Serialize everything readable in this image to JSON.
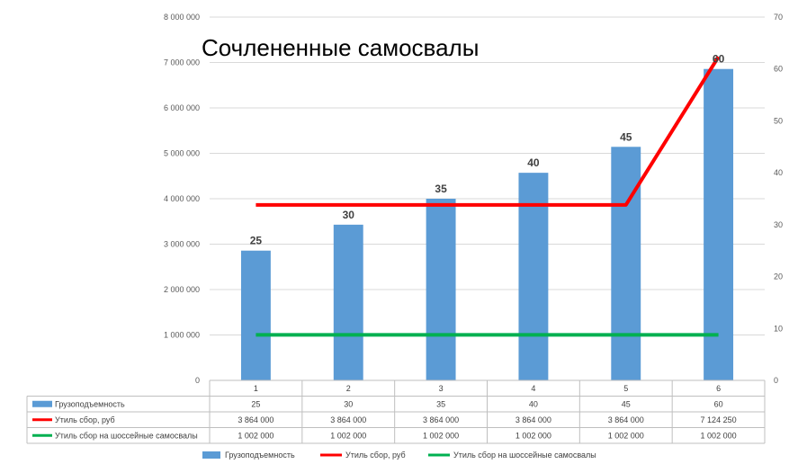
{
  "chart_data": {
    "type": "bar",
    "title": "Сочлененные самосвалы",
    "categories": [
      "1",
      "2",
      "3",
      "4",
      "5",
      "6"
    ],
    "y_left": {
      "range": [
        0,
        8000000
      ],
      "ticks": [
        "0",
        "1 000 000",
        "2 000 000",
        "3 000 000",
        "4 000 000",
        "5 000 000",
        "6 000 000",
        "7 000 000",
        "8 000 000"
      ]
    },
    "y_right": {
      "range": [
        0,
        70
      ],
      "ticks": [
        "0",
        "10",
        "20",
        "30",
        "40",
        "50",
        "60",
        "70"
      ]
    },
    "grid": true,
    "legend_position": "bottom",
    "series": [
      {
        "name": "Грузоподъемность",
        "kind": "bar",
        "axis": "right",
        "color": "#5b9bd5",
        "values": [
          25,
          30,
          35,
          40,
          45,
          60
        ],
        "data_labels": [
          "25",
          "30",
          "35",
          "40",
          "45",
          "60"
        ],
        "table_values": [
          "25",
          "30",
          "35",
          "40",
          "45",
          "60"
        ]
      },
      {
        "name": "Утиль сбор, руб",
        "kind": "line",
        "axis": "left",
        "color": "#ff0000",
        "values": [
          3864000,
          3864000,
          3864000,
          3864000,
          3864000,
          7124250
        ],
        "table_values": [
          "3 864 000",
          "3 864 000",
          "3 864 000",
          "3 864 000",
          "3 864 000",
          "7 124 250"
        ]
      },
      {
        "name": "Утиль сбор на шоссейные самосвалы",
        "kind": "line",
        "axis": "left",
        "color": "#00b050",
        "values": [
          1002000,
          1002000,
          1002000,
          1002000,
          1002000,
          1002000
        ],
        "table_values": [
          "1 002 000",
          "1 002 000",
          "1 002 000",
          "1 002 000",
          "1 002 000",
          "1 002 000"
        ]
      }
    ]
  }
}
